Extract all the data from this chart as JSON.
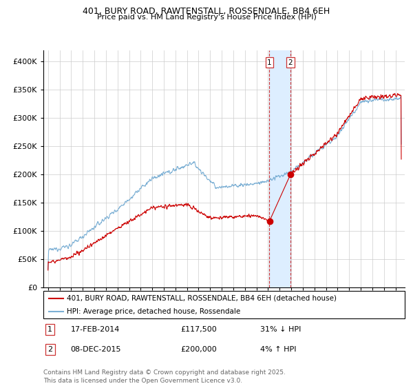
{
  "title_line1": "401, BURY ROAD, RAWTENSTALL, ROSSENDALE, BB4 6EH",
  "title_line2": "Price paid vs. HM Land Registry's House Price Index (HPI)",
  "ylim": [
    0,
    420000
  ],
  "yticks": [
    0,
    50000,
    100000,
    150000,
    200000,
    250000,
    300000,
    350000,
    400000
  ],
  "ytick_labels": [
    "£0",
    "£50K",
    "£100K",
    "£150K",
    "£200K",
    "£250K",
    "£300K",
    "£350K",
    "£400K"
  ],
  "red_line_label": "401, BURY ROAD, RAWTENSTALL, ROSSENDALE, BB4 6EH (detached house)",
  "blue_line_label": "HPI: Average price, detached house, Rossendale",
  "transaction1_date": "17-FEB-2014",
  "transaction1_price": 117500,
  "transaction1_note": "31% ↓ HPI",
  "transaction2_date": "08-DEC-2015",
  "transaction2_price": 200000,
  "transaction2_note": "4% ↑ HPI",
  "transaction1_x": 2014.12,
  "transaction2_x": 2015.93,
  "footer": "Contains HM Land Registry data © Crown copyright and database right 2025.\nThis data is licensed under the Open Government Licence v3.0.",
  "background_color": "#ffffff",
  "grid_color": "#cccccc",
  "red_color": "#cc0000",
  "blue_color": "#7bafd4",
  "highlight_color": "#ddeeff",
  "dashed_color": "#cc3333"
}
